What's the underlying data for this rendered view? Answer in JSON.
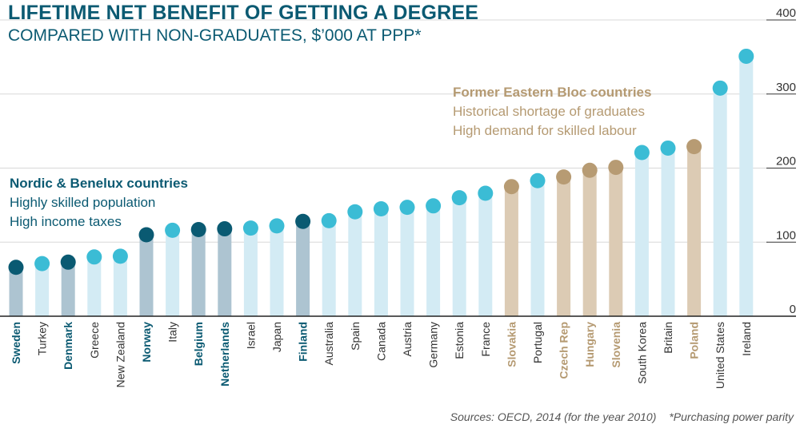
{
  "chart_data": {
    "type": "bar",
    "title": "LIFETIME NET BENEFIT OF GETTING A DEGREE",
    "subtitle": "COMPARED WITH NON-GRADUATES, $’000 AT PPP*",
    "ylim": [
      0,
      400
    ],
    "yticks": [
      "0",
      "100",
      "200",
      "300",
      "400"
    ],
    "grid": true,
    "categories": [
      "Sweden",
      "Turkey",
      "Denmark",
      "Greece",
      "New Zealand",
      "Norway",
      "Italy",
      "Belgium",
      "Netherlands",
      "Israel",
      "Japan",
      "Finland",
      "Australia",
      "Spain",
      "Canada",
      "Austria",
      "Germany",
      "Estonia",
      "France",
      "Slovakia",
      "Portugal",
      "Czech Rep",
      "Hungary",
      "Slovenia",
      "South Korea",
      "Britain",
      "Poland",
      "United States",
      "Ireland"
    ],
    "values": [
      66,
      71,
      73,
      80,
      81,
      110,
      116,
      117,
      118,
      119,
      122,
      128,
      129,
      141,
      145,
      147,
      149,
      160,
      166,
      175,
      183,
      188,
      197,
      201,
      221,
      227,
      229,
      308,
      351
    ],
    "groups": [
      "nordic",
      "other",
      "nordic",
      "other",
      "other",
      "nordic",
      "other",
      "nordic",
      "nordic",
      "other",
      "other",
      "nordic",
      "other",
      "other",
      "other",
      "other",
      "other",
      "other",
      "other",
      "eastern",
      "other",
      "eastern",
      "eastern",
      "eastern",
      "other",
      "other",
      "eastern",
      "other",
      "other"
    ],
    "colors": {
      "nordic": {
        "bar": "#adc4d1",
        "dot": "#0a5a72",
        "label": "#0b5a72"
      },
      "eastern": {
        "bar": "#dccbb4",
        "dot": "#b79b73",
        "label": "#b59a72"
      },
      "other": {
        "bar": "#d3ebf4",
        "dot": "#3bbcd5",
        "label": "#333333"
      }
    },
    "annotations": {
      "nordic": {
        "heading": "Nordic & Benelux countries",
        "lines": [
          "Highly skilled population",
          "High income taxes"
        ]
      },
      "eastern": {
        "heading": "Former Eastern Bloc countries",
        "lines": [
          "Historical shortage of graduates",
          "High demand for skilled labour"
        ]
      }
    },
    "source": "Sources: OECD, 2014 (for the year 2010)",
    "footnote": "*Purchasing power parity"
  }
}
